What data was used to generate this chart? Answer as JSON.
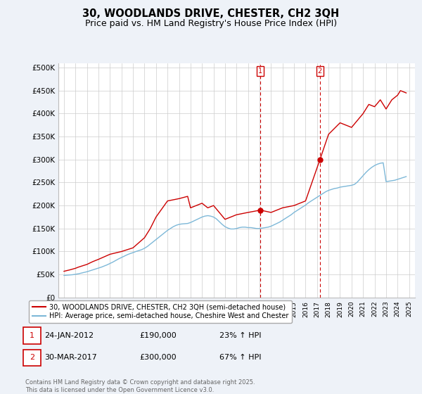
{
  "title": "30, WOODLANDS DRIVE, CHESTER, CH2 3QH",
  "subtitle": "Price paid vs. HM Land Registry's House Price Index (HPI)",
  "yticks": [
    0,
    50000,
    100000,
    150000,
    200000,
    250000,
    300000,
    350000,
    400000,
    450000,
    500000
  ],
  "ytick_labels": [
    "£0",
    "£50K",
    "£100K",
    "£150K",
    "£200K",
    "£250K",
    "£300K",
    "£350K",
    "£400K",
    "£450K",
    "£500K"
  ],
  "xlim": [
    1994.5,
    2025.5
  ],
  "ylim": [
    0,
    510000
  ],
  "xtick_years": [
    1995,
    1996,
    1997,
    1998,
    1999,
    2000,
    2001,
    2002,
    2003,
    2004,
    2005,
    2006,
    2007,
    2008,
    2009,
    2010,
    2011,
    2012,
    2013,
    2014,
    2015,
    2016,
    2017,
    2018,
    2019,
    2020,
    2021,
    2022,
    2023,
    2024,
    2025
  ],
  "hpi_color": "#7db8d8",
  "price_color": "#cc0000",
  "dot_color": "#cc0000",
  "marker1_x": 2012.07,
  "marker1_y": 190000,
  "marker2_x": 2017.25,
  "marker2_y": 300000,
  "vline1_x": 2012.07,
  "vline2_x": 2017.25,
  "legend_line1": "30, WOODLANDS DRIVE, CHESTER, CH2 3QH (semi-detached house)",
  "legend_line2": "HPI: Average price, semi-detached house, Cheshire West and Chester",
  "table_row1": [
    "1",
    "24-JAN-2012",
    "£190,000",
    "23% ↑ HPI"
  ],
  "table_row2": [
    "2",
    "30-MAR-2017",
    "£300,000",
    "67% ↑ HPI"
  ],
  "footnote": "Contains HM Land Registry data © Crown copyright and database right 2025.\nThis data is licensed under the Open Government Licence v3.0.",
  "background_color": "#eef2f8",
  "plot_bg_color": "#ffffff",
  "grid_color": "#cccccc",
  "title_fontsize": 10.5,
  "subtitle_fontsize": 9,
  "hpi_data_x": [
    1995.0,
    1995.25,
    1995.5,
    1995.75,
    1996.0,
    1996.25,
    1996.5,
    1996.75,
    1997.0,
    1997.25,
    1997.5,
    1997.75,
    1998.0,
    1998.25,
    1998.5,
    1998.75,
    1999.0,
    1999.25,
    1999.5,
    1999.75,
    2000.0,
    2000.25,
    2000.5,
    2000.75,
    2001.0,
    2001.25,
    2001.5,
    2001.75,
    2002.0,
    2002.25,
    2002.5,
    2002.75,
    2003.0,
    2003.25,
    2003.5,
    2003.75,
    2004.0,
    2004.25,
    2004.5,
    2004.75,
    2005.0,
    2005.25,
    2005.5,
    2005.75,
    2006.0,
    2006.25,
    2006.5,
    2006.75,
    2007.0,
    2007.25,
    2007.5,
    2007.75,
    2008.0,
    2008.25,
    2008.5,
    2008.75,
    2009.0,
    2009.25,
    2009.5,
    2009.75,
    2010.0,
    2010.25,
    2010.5,
    2010.75,
    2011.0,
    2011.25,
    2011.5,
    2011.75,
    2012.0,
    2012.25,
    2012.5,
    2012.75,
    2013.0,
    2013.25,
    2013.5,
    2013.75,
    2014.0,
    2014.25,
    2014.5,
    2014.75,
    2015.0,
    2015.25,
    2015.5,
    2015.75,
    2016.0,
    2016.25,
    2016.5,
    2016.75,
    2017.0,
    2017.25,
    2017.5,
    2017.75,
    2018.0,
    2018.25,
    2018.5,
    2018.75,
    2019.0,
    2019.25,
    2019.5,
    2019.75,
    2020.0,
    2020.25,
    2020.5,
    2020.75,
    2021.0,
    2021.25,
    2021.5,
    2021.75,
    2022.0,
    2022.25,
    2022.5,
    2022.75,
    2023.0,
    2023.25,
    2023.5,
    2023.75,
    2024.0,
    2024.25,
    2024.5,
    2024.75
  ],
  "hpi_data_y": [
    48000,
    48500,
    49000,
    49500,
    50500,
    51500,
    53000,
    54500,
    56000,
    58000,
    60000,
    62000,
    64000,
    66000,
    68500,
    71000,
    74000,
    77000,
    80500,
    84000,
    87000,
    90000,
    93000,
    95500,
    97500,
    100000,
    102000,
    104000,
    107000,
    111000,
    116000,
    121000,
    126000,
    131000,
    136000,
    141000,
    146000,
    150000,
    154000,
    157000,
    159000,
    160000,
    160500,
    161000,
    163000,
    166000,
    169000,
    172000,
    175000,
    177000,
    178000,
    177000,
    175000,
    171000,
    165000,
    159000,
    154000,
    151000,
    149000,
    149000,
    150000,
    152000,
    153000,
    153000,
    152000,
    152000,
    151000,
    150000,
    150000,
    151000,
    152000,
    153000,
    155000,
    158000,
    161000,
    164000,
    168000,
    172000,
    176000,
    180000,
    185000,
    189000,
    193000,
    197000,
    201000,
    206000,
    210000,
    214000,
    218000,
    222000,
    226000,
    230000,
    233000,
    235000,
    237000,
    238000,
    240000,
    241000,
    242000,
    243000,
    244000,
    246000,
    251000,
    258000,
    265000,
    272000,
    278000,
    283000,
    287000,
    290000,
    292000,
    293000,
    252000,
    253000,
    254000,
    255000,
    257000,
    259000,
    261000,
    263000
  ],
  "price_data_x": [
    1995.0,
    1995.5,
    1996.0,
    1996.25,
    1997.0,
    1997.5,
    1998.0,
    1999.0,
    2000.0,
    2001.0,
    2002.0,
    2002.5,
    2003.0,
    2004.0,
    2005.0,
    2005.75,
    2006.0,
    2007.0,
    2007.5,
    2008.0,
    2009.0,
    2010.0,
    2011.0,
    2012.07,
    2013.0,
    2014.0,
    2015.0,
    2016.0,
    2017.25,
    2018.0,
    2019.0,
    2020.0,
    2021.0,
    2021.5,
    2022.0,
    2022.5,
    2023.0,
    2023.5,
    2024.0,
    2024.25,
    2024.75
  ],
  "price_data_y": [
    57000,
    60000,
    63500,
    66000,
    72000,
    78000,
    83000,
    94000,
    100000,
    108000,
    130000,
    150000,
    175000,
    210000,
    215000,
    220000,
    195000,
    205000,
    195000,
    200000,
    170000,
    180000,
    185000,
    190000,
    185000,
    195000,
    200000,
    210000,
    300000,
    355000,
    380000,
    370000,
    400000,
    420000,
    415000,
    430000,
    410000,
    430000,
    440000,
    450000,
    445000
  ]
}
